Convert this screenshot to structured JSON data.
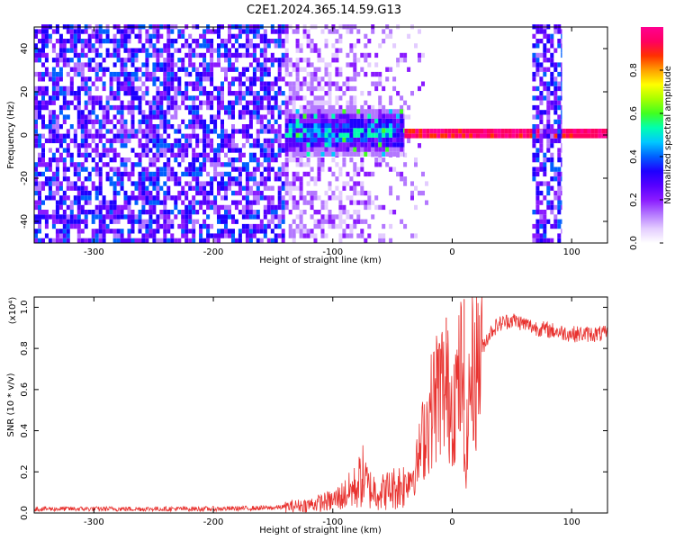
{
  "title": "C2E1.2024.365.14.59.G13",
  "chart_data": [
    {
      "type": "heatmap",
      "xlabel": "Height of straight line (km)",
      "ylabel": "Frequency (Hz)",
      "xlim": [
        -350,
        130
      ],
      "ylim": [
        -50,
        50
      ],
      "x_ticks": [
        "-300",
        "-200",
        "-100",
        "0",
        "100"
      ],
      "y_ticks": [
        "-40",
        "-20",
        "0",
        "20",
        "40"
      ],
      "colorbar": {
        "label": "Normalized spectral amplitude",
        "range": [
          0,
          1
        ],
        "ticks": [
          "0.0",
          "0.2",
          "0.4",
          "0.6",
          "0.8"
        ],
        "colors": [
          "#ffffff",
          "#e3ccff",
          "#b478ff",
          "#8a1aff",
          "#5500ff",
          "#1e00ff",
          "#0060ff",
          "#00c8ff",
          "#00ffb0",
          "#40ff20",
          "#a8ff00",
          "#ffff00",
          "#ffa000",
          "#ff3000",
          "#ff0060",
          "#ff0090"
        ]
      },
      "regions": [
        {
          "from_km": -350,
          "to_km": -140,
          "description": "broadband noise",
          "freq_range": [
            -50,
            50
          ],
          "level": 0.25
        },
        {
          "from_km": -140,
          "to_km": -20,
          "description": "noise fading out",
          "freq_range": [
            -50,
            50
          ],
          "level": 0.12
        },
        {
          "from_km": -140,
          "to_km": -40,
          "description": "strong low-frequency band",
          "freq_range": [
            -10,
            10
          ],
          "level": 0.4
        },
        {
          "from_km": -40,
          "to_km": 130,
          "description": "narrow line at 0 Hz",
          "freq_range": [
            -1.5,
            1.5
          ],
          "level": 0.9
        },
        {
          "from_km": 67,
          "to_km": 92,
          "description": "broadband burst",
          "freq_range": [
            -50,
            50
          ],
          "level": 0.25
        }
      ]
    },
    {
      "type": "line",
      "xlabel": "Height of straight line (km)",
      "ylabel": "SNR (10 * v/v)",
      "ylabel_exponent": "(x10⁴)",
      "xlim": [
        -350,
        130
      ],
      "ylim": [
        0,
        1.05
      ],
      "x_ticks": [
        "-300",
        "-200",
        "-100",
        "0",
        "100"
      ],
      "y_ticks": [
        "0.0",
        "0.2",
        "0.4",
        "0.6",
        "0.8",
        "1.0"
      ],
      "color": "#e8322f",
      "series": [
        {
          "x": [
            -350,
            -300,
            -250,
            -200,
            -150,
            -120,
            -100,
            -90,
            -80,
            -75,
            -70,
            -60,
            -50,
            -40,
            -30,
            -25,
            -20,
            -15,
            -10,
            -5,
            0,
            5,
            8,
            10,
            12,
            15,
            20,
            25,
            30,
            35,
            40,
            45,
            50,
            55,
            60,
            70,
            80,
            90,
            100,
            110,
            120,
            130
          ],
          "y": [
            0.02,
            0.02,
            0.02,
            0.02,
            0.025,
            0.04,
            0.06,
            0.09,
            0.13,
            0.18,
            0.12,
            0.1,
            0.12,
            0.14,
            0.22,
            0.35,
            0.45,
            0.55,
            0.62,
            0.58,
            0.55,
            0.6,
            0.7,
            0.25,
            0.3,
            0.65,
            0.72,
            0.8,
            0.86,
            0.9,
            0.92,
            0.93,
            0.94,
            0.93,
            0.92,
            0.9,
            0.89,
            0.88,
            0.87,
            0.87,
            0.87,
            0.87
          ]
        }
      ],
      "peak_markers": [
        {
          "x": -5,
          "y": 0.95
        },
        {
          "x": 10,
          "y": 1.04
        }
      ]
    }
  ]
}
